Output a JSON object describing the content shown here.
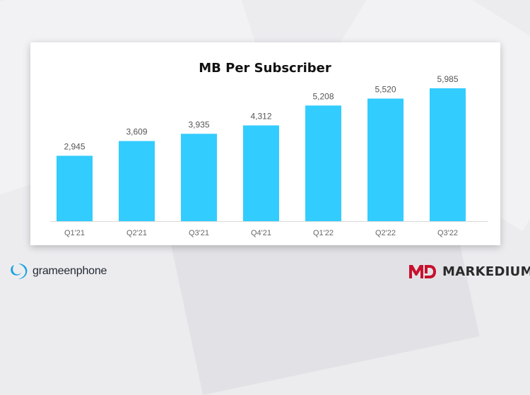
{
  "chart_data": {
    "type": "bar",
    "title": "MB Per Subscriber",
    "categories": [
      "Q1'21",
      "Q2'21",
      "Q3'21",
      "Q4'21",
      "Q1'22",
      "Q2'22",
      "Q3'22"
    ],
    "values": [
      2945,
      3609,
      3935,
      4312,
      5208,
      5520,
      5985
    ],
    "value_labels": [
      "2,945",
      "3,609",
      "3,935",
      "4,312",
      "5,208",
      "5,520",
      "5,985"
    ],
    "xlabel": "",
    "ylabel": "",
    "ylim": [
      0,
      6300
    ],
    "grid": false,
    "legend": "none",
    "bar_color": "#33ccff"
  },
  "logos": {
    "left": {
      "text": "grameenphone",
      "icon": "grameenphone-icon",
      "color": "#1aa3e0"
    },
    "right": {
      "text": "MARKEDIUM",
      "icon": "md-icon",
      "color": "#c8102e"
    }
  }
}
